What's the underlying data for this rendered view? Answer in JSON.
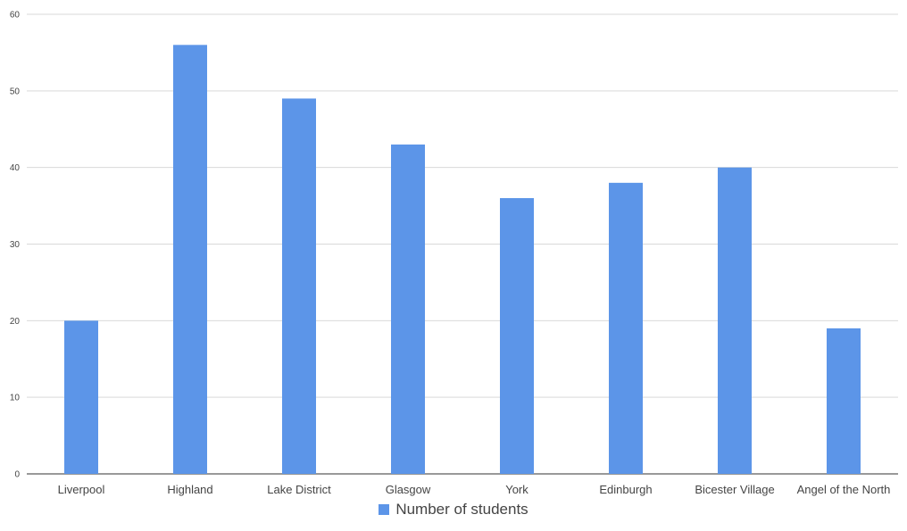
{
  "chart_data": {
    "type": "bar",
    "categories": [
      "Liverpool",
      "Highland",
      "Lake District",
      "Glasgow",
      "York",
      "Edinburgh",
      "Bicester Village",
      "Angel of the North"
    ],
    "series": [
      {
        "name": "Number of students",
        "values": [
          20,
          56,
          49,
          43,
          36,
          38,
          40,
          19
        ]
      }
    ],
    "title": "",
    "xlabel": "",
    "ylabel": "",
    "ylim": [
      0,
      60
    ],
    "yticks": [
      0,
      10,
      20,
      30,
      40,
      50,
      60
    ],
    "grid": true,
    "legend_position": "bottom"
  },
  "colors": {
    "bar": "#5c95e8",
    "grid": "#d9d9d9",
    "axis_text": "#444444"
  }
}
